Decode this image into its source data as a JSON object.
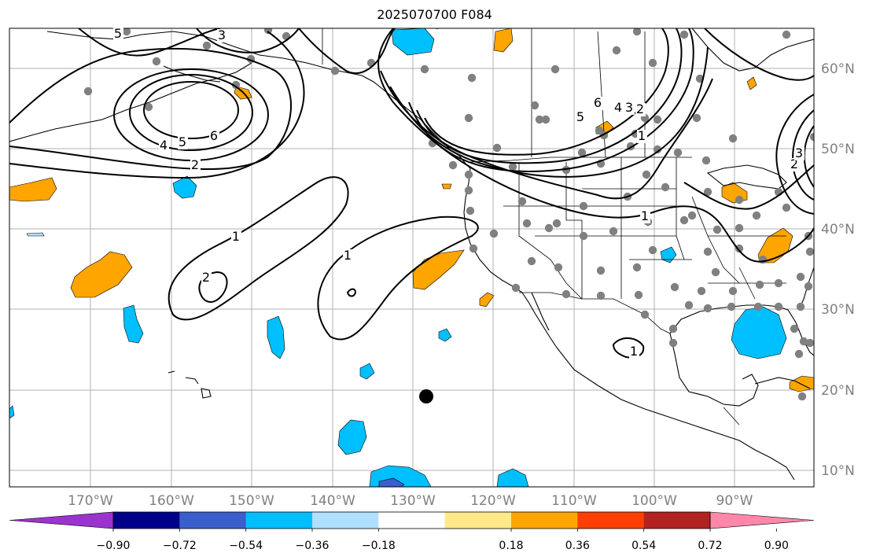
{
  "title": "2025070700 F084",
  "longitude_labels": [
    "170°W",
    "160°W",
    "150°W",
    "140°W",
    "130°W",
    "120°W",
    "110°W",
    "100°W",
    "90°W"
  ],
  "latitude_labels": [
    "60°N",
    "50°N",
    "40°N",
    "30°N",
    "20°N",
    "10°N"
  ],
  "contour_labels": [
    "5",
    "3",
    "4",
    "5",
    "6",
    "2",
    "1",
    "2",
    "1",
    "1",
    "6",
    "5",
    "4",
    "3",
    "2",
    "1",
    "2",
    "3",
    "1"
  ],
  "colorbar": {
    "ticks": [
      "−0.90",
      "−0.72",
      "−0.54",
      "−0.36",
      "−0.18",
      "0.18",
      "0.36",
      "0.54",
      "0.72",
      "0.90"
    ],
    "colors": [
      "#9b33cf",
      "#00008b",
      "#3a5fcd",
      "#00bfff",
      "#b0e0ff",
      "#ffffff",
      "#ffe98a",
      "#ffa500",
      "#ff3f00",
      "#b22222",
      "#ff88aa"
    ]
  },
  "colors": {
    "positive": "#ffa500",
    "negative": "#00bfff",
    "negative_strong": "#3a5fcd",
    "station": "#808080",
    "grid": "#b0b0b0",
    "axis_label": "#808080"
  }
}
